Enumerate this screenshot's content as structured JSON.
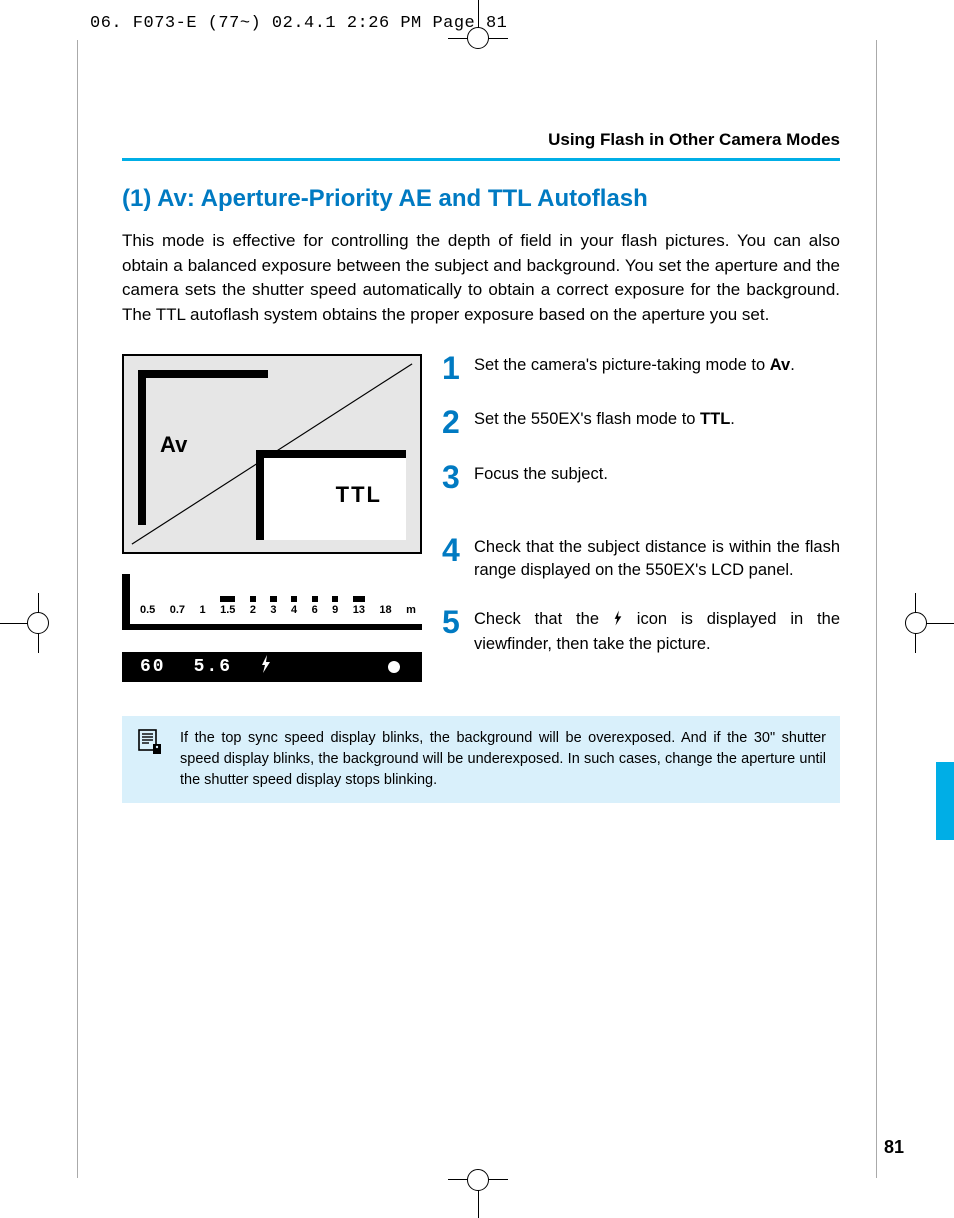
{
  "header_line": "06. F073-E (77~)  02.4.1 2:26 PM  Page 81",
  "running_head": "Using Flash in Other Camera Modes",
  "title": "(1) Av: Aperture-Priority AE and TTL Autoflash",
  "intro": "This mode is effective for controlling the depth of field in your flash pictures. You can also obtain a balanced exposure between the subject and background. You set the aperture and the camera sets the shutter speed automatically to obtain a correct exposure for the background. The TTL autoflash system obtains the proper exposure based on the aperture you set.",
  "diagram": {
    "mode_label": "Av",
    "flash_mode": "TTL"
  },
  "range_scale": {
    "values": [
      "0.5",
      "0.7",
      "1",
      "1.5",
      "2",
      "3",
      "4",
      "6",
      "9",
      "13",
      "18",
      "m"
    ],
    "bar_start_index": 3,
    "bar_end_index": 9
  },
  "viewfinder": {
    "shutter": "60",
    "aperture": "5.6",
    "lcd_segment_font": true
  },
  "steps": [
    {
      "num": "1",
      "text_pre": "Set the camera's picture-taking mode to ",
      "bold": "Av",
      "text_post": "."
    },
    {
      "num": "2",
      "text_pre": "Set the 550EX's flash mode to ",
      "bold": "TTL",
      "text_post": "."
    },
    {
      "num": "3",
      "text_pre": "Focus the subject.",
      "bold": "",
      "text_post": ""
    },
    {
      "num": "4",
      "text_pre": "Check that the subject distance is within the flash range displayed on the 550EX's LCD panel.",
      "bold": "",
      "text_post": ""
    },
    {
      "num": "5",
      "text_pre": "Check that the ",
      "bold": "",
      "text_post": " icon is displayed in the viewfinder, then take the picture.",
      "has_bolt": true
    }
  ],
  "note": "If the top sync speed display blinks, the background will be overexposed. And if the 30\" shutter speed display blinks, the background will be underexposed. In such cases, change the aperture until the shutter speed display stops blinking.",
  "page_number": "81",
  "colors": {
    "accent_blue": "#007ac2",
    "cyan": "#00aee6",
    "note_bg": "#d9f0fb",
    "diagram_bg": "#e6e6e6"
  }
}
